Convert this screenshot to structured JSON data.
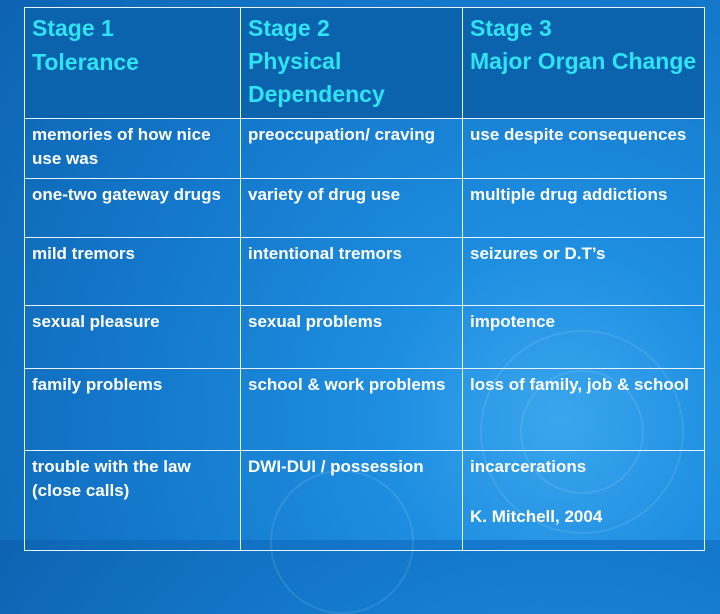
{
  "headers": [
    {
      "line1": "Stage 1",
      "line2": "Tolerance"
    },
    {
      "line1": "Stage 2",
      "line2": "Physical Dependency"
    },
    {
      "line1": "Stage 3",
      "line2": "Major Organ Change"
    }
  ],
  "rows": [
    [
      "memories of how nice use was",
      "preoccupation/ craving",
      "use despite consequences"
    ],
    [
      "one-two gateway drugs",
      "variety of drug use",
      "multiple drug addictions"
    ],
    [
      "mild tremors",
      "intentional tremors",
      "seizures or D.T’s"
    ],
    [
      "sexual pleasure",
      "sexual problems",
      "impotence"
    ],
    [
      "family problems",
      "school & work problems",
      "loss of family, job  & school"
    ],
    [
      "trouble with the law (close calls)",
      "DWI-DUI / possession",
      "incarcerations"
    ]
  ],
  "citation": "K. Mitchell, 2004",
  "colors": {
    "header_bg": "#0b62ad",
    "header_text": "#2fe3f2",
    "body_text": "#ffffff"
  }
}
